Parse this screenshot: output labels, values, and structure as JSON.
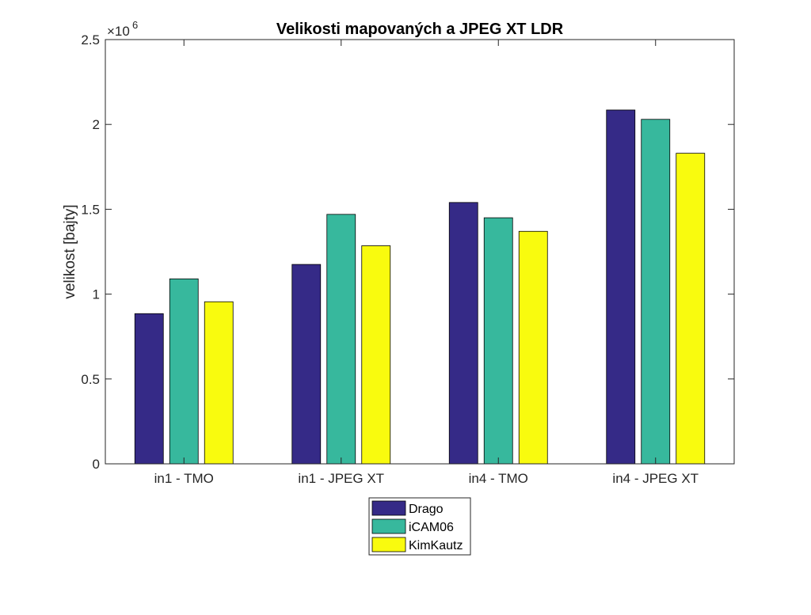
{
  "chart_data": {
    "type": "bar",
    "title": "Velikosti mapovaných a JPEG XT LDR",
    "xlabel": "",
    "ylabel": "velikost [bajty]",
    "y_scale_exponent_label": "×10",
    "y_scale_exponent": "6",
    "categories": [
      "in1 - TMO",
      "in1 - JPEG XT",
      "in4 - TMO",
      "in4 - JPEG XT"
    ],
    "ylim": [
      0,
      2500000
    ],
    "yticks": [
      0,
      500000,
      1000000,
      1500000,
      2000000,
      2500000
    ],
    "ytick_labels": [
      "0",
      "0.5",
      "1",
      "1.5",
      "2",
      "2.5"
    ],
    "grid": false,
    "legend_position": "bottom-center",
    "series": [
      {
        "name": "Drago",
        "color": "#352a87",
        "values": [
          885000,
          1175000,
          1540000,
          2085000
        ]
      },
      {
        "name": "iCAM06",
        "color": "#37b89d",
        "values": [
          1090000,
          1470000,
          1450000,
          2030000
        ]
      },
      {
        "name": "KimKautz",
        "color": "#f9fb0e",
        "values": [
          955000,
          1285000,
          1370000,
          1830000
        ]
      }
    ]
  }
}
